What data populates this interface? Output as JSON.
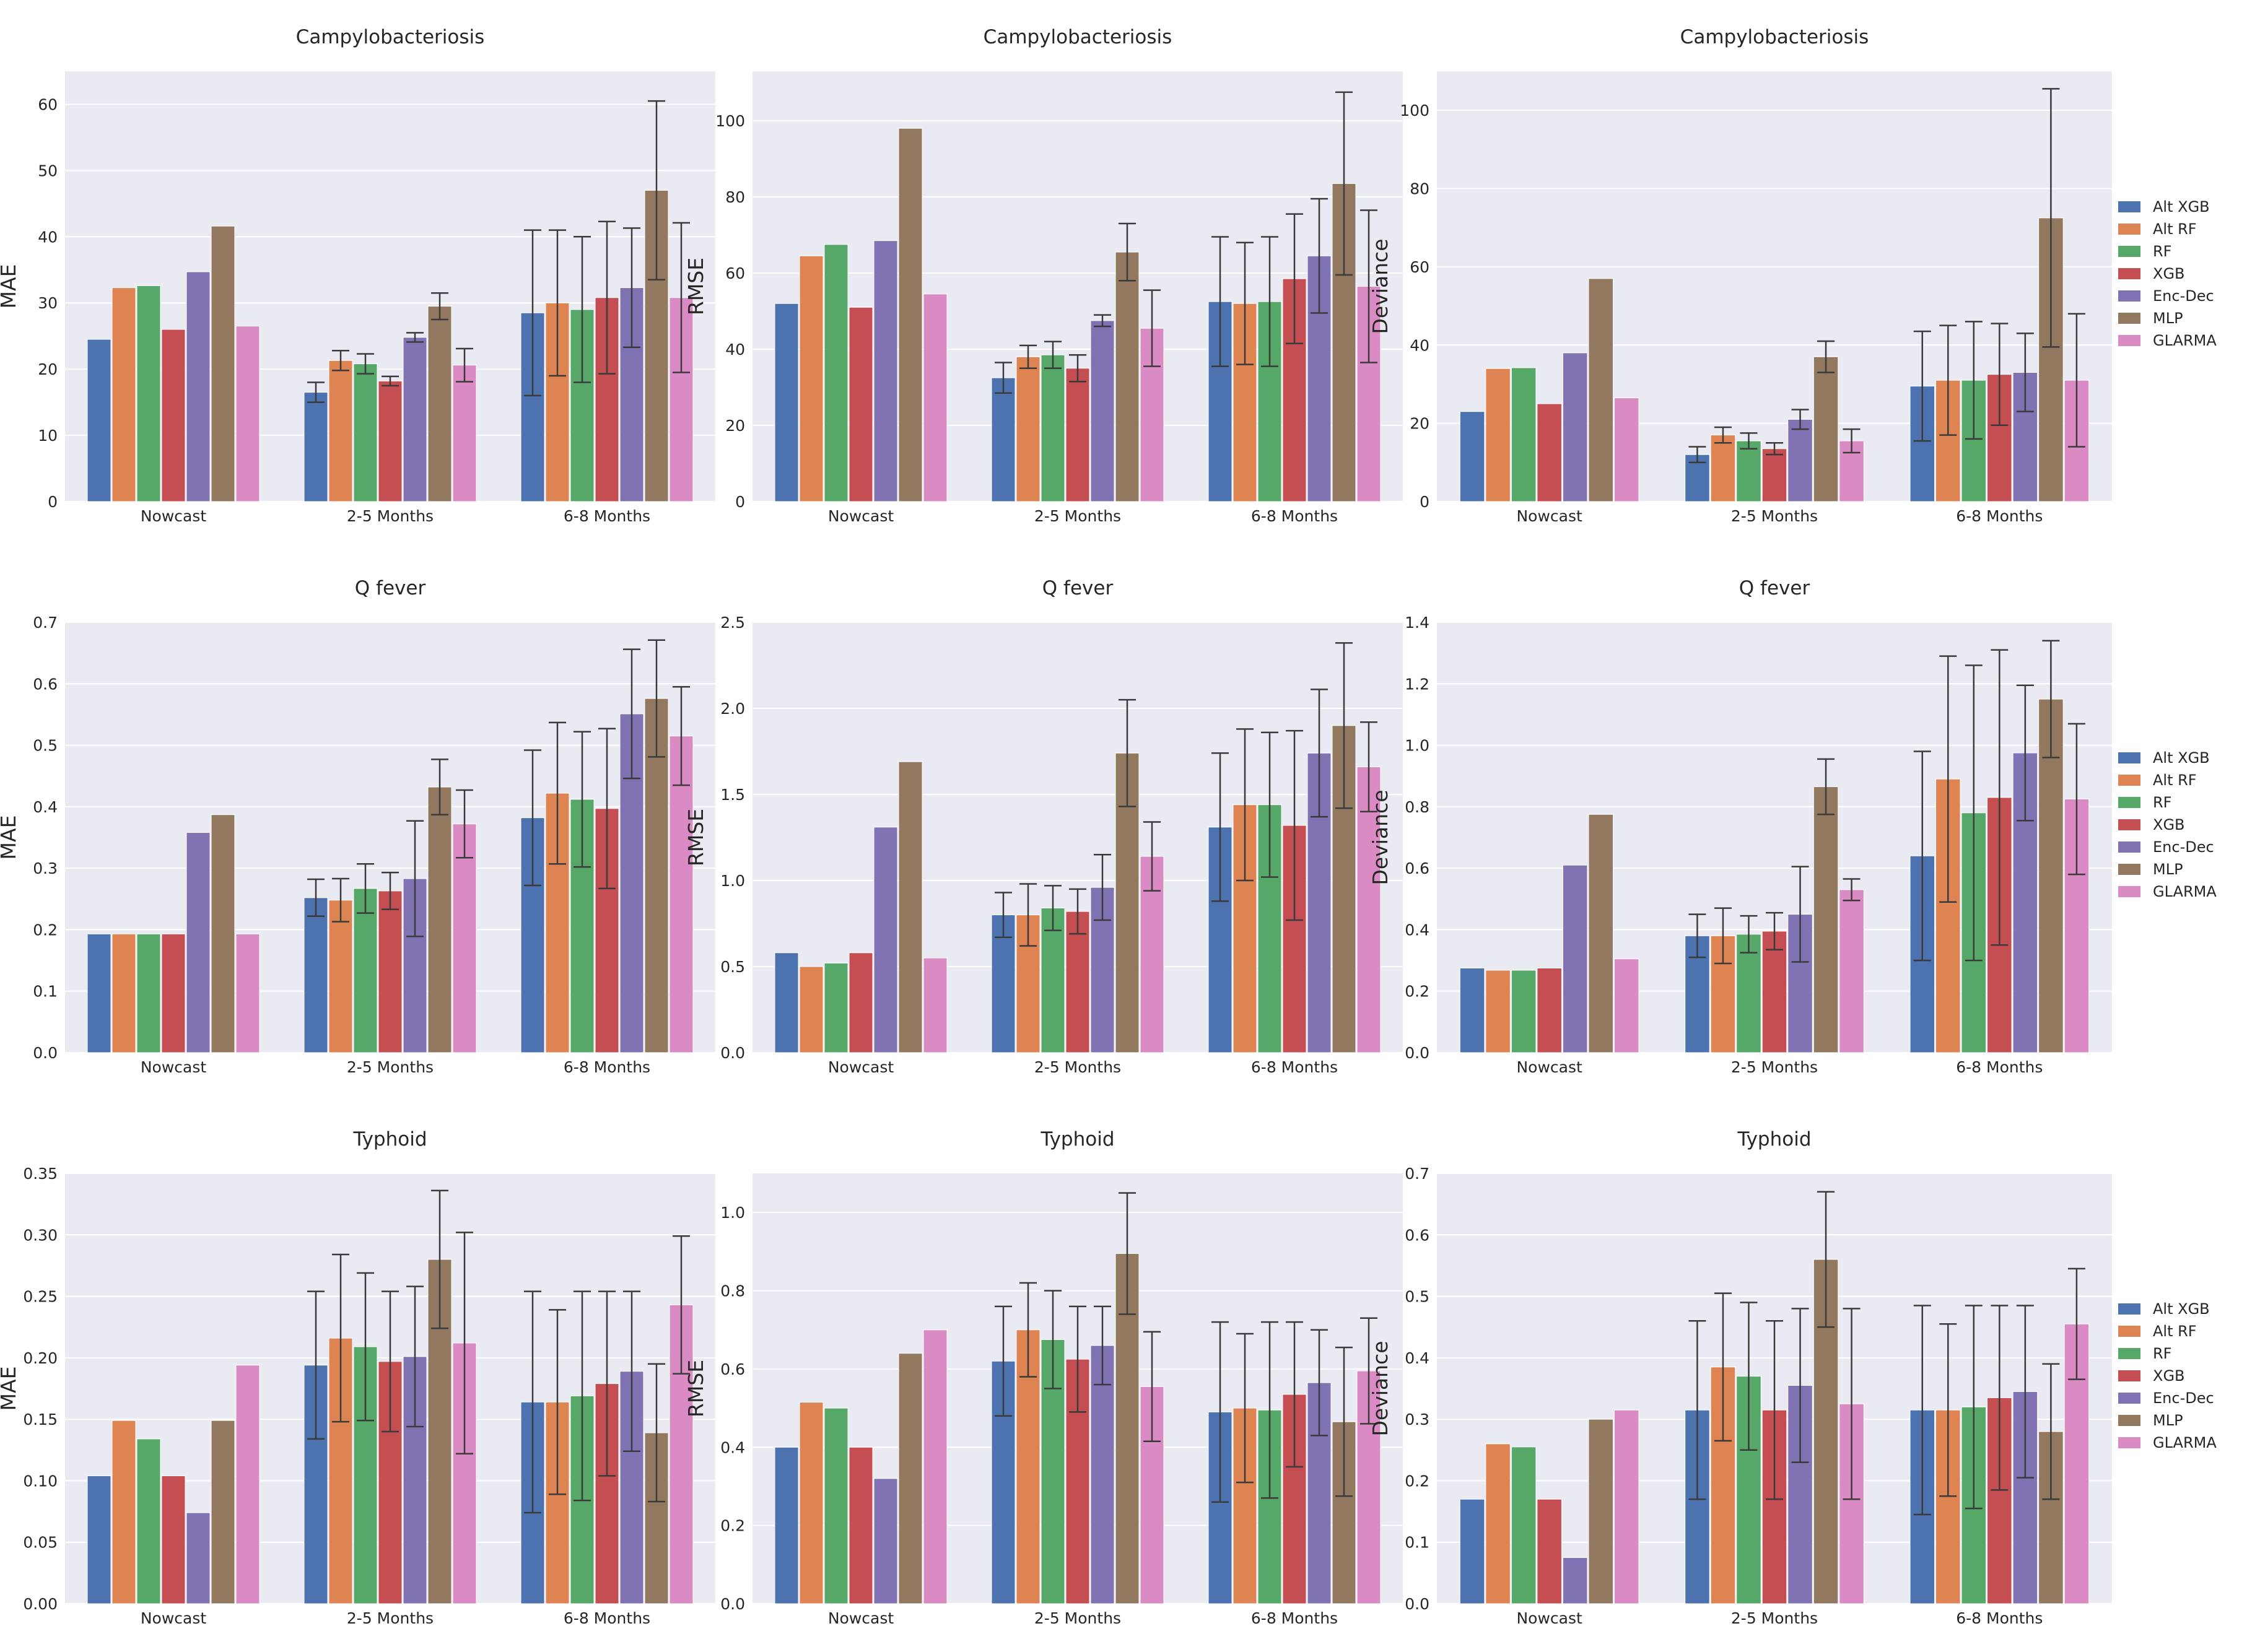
{
  "figure": {
    "background": "#eaeaf2"
  },
  "legend": {
    "entries": [
      "Alt XGB",
      "Alt RF",
      "RF",
      "XGB",
      "Enc-Dec",
      "MLP",
      "GLARMA"
    ],
    "colors": [
      "#4c72b0",
      "#dd8452",
      "#55a868",
      "#c44e52",
      "#8172b3",
      "#937860",
      "#da8bc3"
    ]
  },
  "chart_data": [
    {
      "type": "bar",
      "title": "Campylobacteriosis",
      "ylabel": "MAE",
      "categories": [
        "Nowcast",
        "2-5 Months",
        "6-8 Months"
      ],
      "ylim": [
        0,
        65
      ],
      "yticks": [
        "0",
        "10",
        "20",
        "30",
        "40",
        "50",
        "60"
      ],
      "series": [
        {
          "name": "Alt XGB",
          "values": [
            24.5,
            16.5,
            28.5
          ],
          "err": [
            null,
            1.5,
            12.5
          ]
        },
        {
          "name": "Alt RF",
          "values": [
            32.3,
            21.3,
            30
          ],
          "err": [
            null,
            1.5,
            11
          ]
        },
        {
          "name": "RF",
          "values": [
            32.6,
            20.8,
            29
          ],
          "err": [
            null,
            1.5,
            11
          ]
        },
        {
          "name": "XGB",
          "values": [
            26,
            18.2,
            30.8
          ],
          "err": [
            null,
            0.7,
            11.5
          ]
        },
        {
          "name": "Enc-Dec",
          "values": [
            34.7,
            24.8,
            32.3
          ],
          "err": [
            null,
            0.7,
            9
          ]
        },
        {
          "name": "MLP",
          "values": [
            41.6,
            29.5,
            47
          ],
          "err": [
            null,
            2,
            13.5
          ]
        },
        {
          "name": "GLARMA",
          "values": [
            26.5,
            20.6,
            30.8
          ],
          "err": [
            null,
            2.5,
            11.3
          ]
        }
      ]
    },
    {
      "type": "bar",
      "title": "Campylobacteriosis",
      "ylabel": "RMSE",
      "categories": [
        "Nowcast",
        "2-5 Months",
        "6-8 Months"
      ],
      "ylim": [
        0,
        113
      ],
      "yticks": [
        "0",
        "20",
        "40",
        "60",
        "80",
        "100"
      ],
      "series": [
        {
          "name": "Alt XGB",
          "values": [
            52,
            32.5,
            52.5
          ],
          "err": [
            null,
            4,
            17
          ]
        },
        {
          "name": "Alt RF",
          "values": [
            64.5,
            38,
            52
          ],
          "err": [
            null,
            3,
            16
          ]
        },
        {
          "name": "RF",
          "values": [
            67.5,
            38.5,
            52.5
          ],
          "err": [
            null,
            3.5,
            17
          ]
        },
        {
          "name": "XGB",
          "values": [
            51,
            35,
            58.5
          ],
          "err": [
            null,
            3.5,
            17
          ]
        },
        {
          "name": "Enc-Dec",
          "values": [
            68.5,
            47.5,
            64.5
          ],
          "err": [
            null,
            1.5,
            15
          ]
        },
        {
          "name": "MLP",
          "values": [
            98,
            65.5,
            83.5
          ],
          "err": [
            null,
            7.5,
            24
          ]
        },
        {
          "name": "GLARMA",
          "values": [
            54.5,
            45.5,
            56.5
          ],
          "err": [
            null,
            10,
            20
          ]
        }
      ]
    },
    {
      "type": "bar",
      "title": "Campylobacteriosis",
      "ylabel": "Deviance",
      "categories": [
        "Nowcast",
        "2-5 Months",
        "6-8 Months"
      ],
      "ylim": [
        0,
        110
      ],
      "yticks": [
        "0",
        "20",
        "40",
        "60",
        "80",
        "100"
      ],
      "series": [
        {
          "name": "Alt XGB",
          "values": [
            23,
            12,
            29.5
          ],
          "err": [
            null,
            2,
            14
          ]
        },
        {
          "name": "Alt RF",
          "values": [
            34,
            17,
            31
          ],
          "err": [
            null,
            2,
            14
          ]
        },
        {
          "name": "RF",
          "values": [
            34.2,
            15.5,
            31
          ],
          "err": [
            null,
            2,
            15
          ]
        },
        {
          "name": "XGB",
          "values": [
            25,
            13.5,
            32.5
          ],
          "err": [
            null,
            1.5,
            13
          ]
        },
        {
          "name": "Enc-Dec",
          "values": [
            38,
            21,
            33
          ],
          "err": [
            null,
            2.5,
            10
          ]
        },
        {
          "name": "MLP",
          "values": [
            57,
            37,
            72.5
          ],
          "err": [
            null,
            4,
            33
          ]
        },
        {
          "name": "GLARMA",
          "values": [
            26.5,
            15.5,
            31
          ],
          "err": [
            null,
            3,
            17
          ]
        }
      ]
    },
    {
      "type": "bar",
      "title": "Q fever",
      "ylabel": "MAE",
      "categories": [
        "Nowcast",
        "2-5 Months",
        "6-8 Months"
      ],
      "ylim": [
        0,
        0.7
      ],
      "yticks": [
        "0.0",
        "0.1",
        "0.2",
        "0.3",
        "0.4",
        "0.5",
        "0.6",
        "0.7"
      ],
      "series": [
        {
          "name": "Alt XGB",
          "values": [
            0.193,
            0.252,
            0.382
          ],
          "err": [
            null,
            0.03,
            0.11
          ]
        },
        {
          "name": "Alt RF",
          "values": [
            0.193,
            0.248,
            0.422
          ],
          "err": [
            null,
            0.035,
            0.115
          ]
        },
        {
          "name": "RF",
          "values": [
            0.193,
            0.267,
            0.412
          ],
          "err": [
            null,
            0.04,
            0.11
          ]
        },
        {
          "name": "XGB",
          "values": [
            0.193,
            0.263,
            0.397
          ],
          "err": [
            null,
            0.03,
            0.13
          ]
        },
        {
          "name": "Enc-Dec",
          "values": [
            0.358,
            0.283,
            0.551
          ],
          "err": [
            null,
            0.094,
            0.105
          ]
        },
        {
          "name": "MLP",
          "values": [
            0.387,
            0.432,
            0.576
          ],
          "err": [
            null,
            0.045,
            0.095
          ]
        },
        {
          "name": "GLARMA",
          "values": [
            0.193,
            0.372,
            0.515
          ],
          "err": [
            null,
            0.055,
            0.08
          ]
        }
      ]
    },
    {
      "type": "bar",
      "title": "Q fever",
      "ylabel": "RMSE",
      "categories": [
        "Nowcast",
        "2-5 Months",
        "6-8 Months"
      ],
      "ylim": [
        0,
        2.5
      ],
      "yticks": [
        "0.0",
        "0.5",
        "1.0",
        "1.5",
        "2.0",
        "2.5"
      ],
      "series": [
        {
          "name": "Alt XGB",
          "values": [
            0.58,
            0.8,
            1.31
          ],
          "err": [
            null,
            0.13,
            0.43
          ]
        },
        {
          "name": "Alt RF",
          "values": [
            0.5,
            0.8,
            1.44
          ],
          "err": [
            null,
            0.18,
            0.44
          ]
        },
        {
          "name": "RF",
          "values": [
            0.52,
            0.84,
            1.44
          ],
          "err": [
            null,
            0.13,
            0.42
          ]
        },
        {
          "name": "XGB",
          "values": [
            0.58,
            0.82,
            1.32
          ],
          "err": [
            null,
            0.13,
            0.55
          ]
        },
        {
          "name": "Enc-Dec",
          "values": [
            1.31,
            0.96,
            1.74
          ],
          "err": [
            null,
            0.19,
            0.37
          ]
        },
        {
          "name": "MLP",
          "values": [
            1.69,
            1.74,
            1.9
          ],
          "err": [
            null,
            0.31,
            0.48
          ]
        },
        {
          "name": "GLARMA",
          "values": [
            0.55,
            1.14,
            1.66
          ],
          "err": [
            null,
            0.2,
            0.26
          ]
        }
      ]
    },
    {
      "type": "bar",
      "title": "Q fever",
      "ylabel": "Deviance",
      "categories": [
        "Nowcast",
        "2-5 Months",
        "6-8 Months"
      ],
      "ylim": [
        0,
        1.4
      ],
      "yticks": [
        "0.0",
        "0.2",
        "0.4",
        "0.6",
        "0.8",
        "1.0",
        "1.2",
        "1.4"
      ],
      "series": [
        {
          "name": "Alt XGB",
          "values": [
            0.275,
            0.38,
            0.64
          ],
          "err": [
            null,
            0.07,
            0.34
          ]
        },
        {
          "name": "Alt RF",
          "values": [
            0.268,
            0.38,
            0.89
          ],
          "err": [
            null,
            0.09,
            0.4
          ]
        },
        {
          "name": "RF",
          "values": [
            0.268,
            0.385,
            0.78
          ],
          "err": [
            null,
            0.06,
            0.48
          ]
        },
        {
          "name": "XGB",
          "values": [
            0.275,
            0.395,
            0.83
          ],
          "err": [
            null,
            0.06,
            0.48
          ]
        },
        {
          "name": "Enc-Dec",
          "values": [
            0.61,
            0.45,
            0.975
          ],
          "err": [
            null,
            0.155,
            0.22
          ]
        },
        {
          "name": "MLP",
          "values": [
            0.775,
            0.865,
            1.15
          ],
          "err": [
            null,
            0.09,
            0.19
          ]
        },
        {
          "name": "GLARMA",
          "values": [
            0.305,
            0.53,
            0.825
          ],
          "err": [
            null,
            0.035,
            0.245
          ]
        }
      ]
    },
    {
      "type": "bar",
      "title": "Typhoid",
      "ylabel": "MAE",
      "categories": [
        "Nowcast",
        "2-5 Months",
        "6-8 Months"
      ],
      "ylim": [
        0,
        0.35
      ],
      "yticks": [
        "0.00",
        "0.05",
        "0.10",
        "0.15",
        "0.20",
        "0.25",
        "0.30",
        "0.35"
      ],
      "series": [
        {
          "name": "Alt XGB",
          "values": [
            0.104,
            0.194,
            0.164
          ],
          "err": [
            null,
            0.06,
            0.09
          ]
        },
        {
          "name": "Alt RF",
          "values": [
            0.149,
            0.216,
            0.164
          ],
          "err": [
            null,
            0.068,
            0.075
          ]
        },
        {
          "name": "RF",
          "values": [
            0.134,
            0.209,
            0.169
          ],
          "err": [
            null,
            0.06,
            0.085
          ]
        },
        {
          "name": "XGB",
          "values": [
            0.104,
            0.197,
            0.179
          ],
          "err": [
            null,
            0.057,
            0.075
          ]
        },
        {
          "name": "Enc-Dec",
          "values": [
            0.074,
            0.201,
            0.189
          ],
          "err": [
            null,
            0.057,
            0.065
          ]
        },
        {
          "name": "MLP",
          "values": [
            0.149,
            0.28,
            0.139
          ],
          "err": [
            null,
            0.056,
            0.056
          ]
        },
        {
          "name": "GLARMA",
          "values": [
            0.194,
            0.212,
            0.243
          ],
          "err": [
            null,
            0.09,
            0.056
          ]
        }
      ]
    },
    {
      "type": "bar",
      "title": "Typhoid",
      "ylabel": "RMSE",
      "categories": [
        "Nowcast",
        "2-5 Months",
        "6-8 Months"
      ],
      "ylim": [
        0,
        1.1
      ],
      "yticks": [
        "0.0",
        "0.2",
        "0.4",
        "0.6",
        "0.8",
        "1.0"
      ],
      "series": [
        {
          "name": "Alt XGB",
          "values": [
            0.4,
            0.62,
            0.49
          ],
          "err": [
            null,
            0.14,
            0.23
          ]
        },
        {
          "name": "Alt RF",
          "values": [
            0.515,
            0.7,
            0.5
          ],
          "err": [
            null,
            0.12,
            0.19
          ]
        },
        {
          "name": "RF",
          "values": [
            0.5,
            0.675,
            0.495
          ],
          "err": [
            null,
            0.125,
            0.225
          ]
        },
        {
          "name": "XGB",
          "values": [
            0.4,
            0.625,
            0.535
          ],
          "err": [
            null,
            0.135,
            0.185
          ]
        },
        {
          "name": "Enc-Dec",
          "values": [
            0.32,
            0.66,
            0.565
          ],
          "err": [
            null,
            0.1,
            0.135
          ]
        },
        {
          "name": "MLP",
          "values": [
            0.64,
            0.895,
            0.465
          ],
          "err": [
            null,
            0.155,
            0.19
          ]
        },
        {
          "name": "GLARMA",
          "values": [
            0.7,
            0.555,
            0.595
          ],
          "err": [
            null,
            0.14,
            0.135
          ]
        }
      ]
    },
    {
      "type": "bar",
      "title": "Typhoid",
      "ylabel": "Deviance",
      "categories": [
        "Nowcast",
        "2-5 Months",
        "6-8 Months"
      ],
      "ylim": [
        0,
        0.7
      ],
      "yticks": [
        "0.0",
        "0.1",
        "0.2",
        "0.3",
        "0.4",
        "0.5",
        "0.6",
        "0.7"
      ],
      "series": [
        {
          "name": "Alt XGB",
          "values": [
            0.17,
            0.315,
            0.315
          ],
          "err": [
            null,
            0.145,
            0.17
          ]
        },
        {
          "name": "Alt RF",
          "values": [
            0.26,
            0.385,
            0.315
          ],
          "err": [
            null,
            0.12,
            0.14
          ]
        },
        {
          "name": "RF",
          "values": [
            0.255,
            0.37,
            0.32
          ],
          "err": [
            null,
            0.12,
            0.165
          ]
        },
        {
          "name": "XGB",
          "values": [
            0.17,
            0.315,
            0.335
          ],
          "err": [
            null,
            0.145,
            0.15
          ]
        },
        {
          "name": "Enc-Dec",
          "values": [
            0.075,
            0.355,
            0.345
          ],
          "err": [
            null,
            0.125,
            0.14
          ]
        },
        {
          "name": "MLP",
          "values": [
            0.3,
            0.56,
            0.28
          ],
          "err": [
            null,
            0.11,
            0.11
          ]
        },
        {
          "name": "GLARMA",
          "values": [
            0.315,
            0.325,
            0.455
          ],
          "err": [
            null,
            0.155,
            0.09
          ]
        }
      ]
    }
  ]
}
